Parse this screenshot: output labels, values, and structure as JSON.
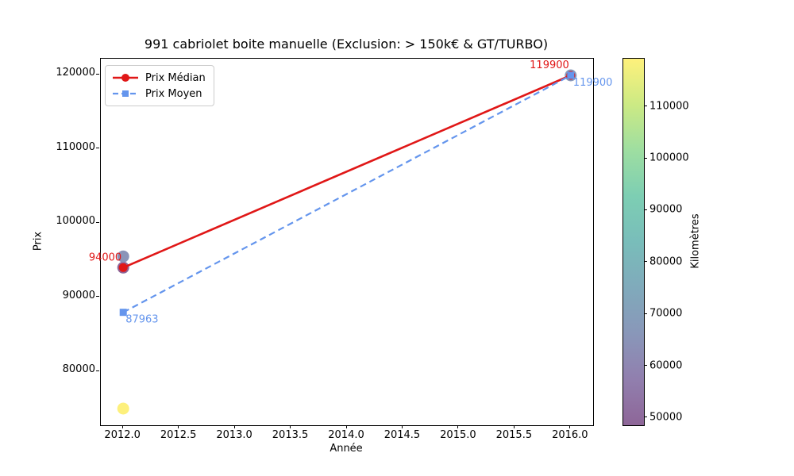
{
  "figure": {
    "title": "991 cabriolet boite manuelle (Exclusion: > 150k€ & GT/TURBO)"
  },
  "chart_data": {
    "type": "line",
    "title": "991 cabriolet boite manuelle (Exclusion: > 150k€ & GT/TURBO)",
    "xlabel": "Année",
    "ylabel": "Prix",
    "xlim": [
      2011.8,
      2016.2
    ],
    "ylim": [
      72755,
      122145
    ],
    "grid": false,
    "xticks": {
      "values": [
        2012.0,
        2012.5,
        2013.0,
        2013.5,
        2014.0,
        2014.5,
        2015.0,
        2015.5,
        2016.0
      ],
      "labels": [
        "2012.0",
        "2012.5",
        "2013.0",
        "2013.5",
        "2014.0",
        "2014.5",
        "2015.0",
        "2015.5",
        "2016.0"
      ]
    },
    "yticks": {
      "values": [
        80000,
        90000,
        100000,
        110000,
        120000
      ],
      "labels": [
        "80000",
        "90000",
        "100000",
        "110000",
        "120000"
      ]
    },
    "series": [
      {
        "name": "Prix Médian",
        "x": [
          2012,
          2016
        ],
        "values": [
          94000,
          119900
        ],
        "color": "#e01717",
        "line_style": "solid",
        "line_width": 2.6,
        "marker": "circle",
        "marker_size": 5.5
      },
      {
        "name": "Prix Moyen",
        "x": [
          2012,
          2016
        ],
        "values": [
          87963,
          119900
        ],
        "color": "#6495ed",
        "line_style": "dashed",
        "line_width": 2.2,
        "marker": "square",
        "marker_size": 9
      }
    ],
    "scatter_points": [
      {
        "x": 2012,
        "y": 94000,
        "km": 48600,
        "color": "#8e6698"
      },
      {
        "x": 2012,
        "y": 95500,
        "km": 65000,
        "color": "#8a94b8"
      },
      {
        "x": 2012,
        "y": 75000,
        "km": 119300,
        "color": "#fdf07c"
      },
      {
        "x": 2016,
        "y": 119900,
        "km": 68000,
        "color": "#8899ba"
      }
    ],
    "scatter_radius": 7.5,
    "annotations": [
      {
        "text": "94000",
        "x": 2012,
        "y": 94000,
        "color": "#e01717",
        "placement": "above-left"
      },
      {
        "text": "87963",
        "x": 2012,
        "y": 87963,
        "color": "#6495ed",
        "placement": "below-right"
      },
      {
        "text": "119900",
        "x": 2016,
        "y": 119900,
        "color": "#e01717",
        "placement": "above-left"
      },
      {
        "text": "119900",
        "x": 2016,
        "y": 119900,
        "color": "#6495ed",
        "placement": "below-right"
      }
    ],
    "legend": {
      "position": "upper-left",
      "entries": [
        "Prix Médian",
        "Prix Moyen"
      ]
    },
    "colorbar": {
      "label": "Kilomètres",
      "vmin": 48600,
      "vmax": 119300,
      "ticks": {
        "values": [
          50000,
          60000,
          70000,
          80000,
          90000,
          100000,
          110000
        ],
        "labels": [
          "50000",
          "60000",
          "70000",
          "80000",
          "90000",
          "100000",
          "110000"
        ]
      },
      "colormap": "viridis-alpha0.6",
      "gradient_stops": [
        {
          "offset": 0.0,
          "color": "#8e6698"
        },
        {
          "offset": 0.125,
          "color": "#917fae"
        },
        {
          "offset": 0.25,
          "color": "#8997b9"
        },
        {
          "offset": 0.375,
          "color": "#80aabb"
        },
        {
          "offset": 0.5,
          "color": "#79bdba"
        },
        {
          "offset": 0.625,
          "color": "#7dceb3"
        },
        {
          "offset": 0.75,
          "color": "#9edea1"
        },
        {
          "offset": 0.875,
          "color": "#ccea84"
        },
        {
          "offset": 1.0,
          "color": "#fef17c"
        }
      ]
    }
  }
}
